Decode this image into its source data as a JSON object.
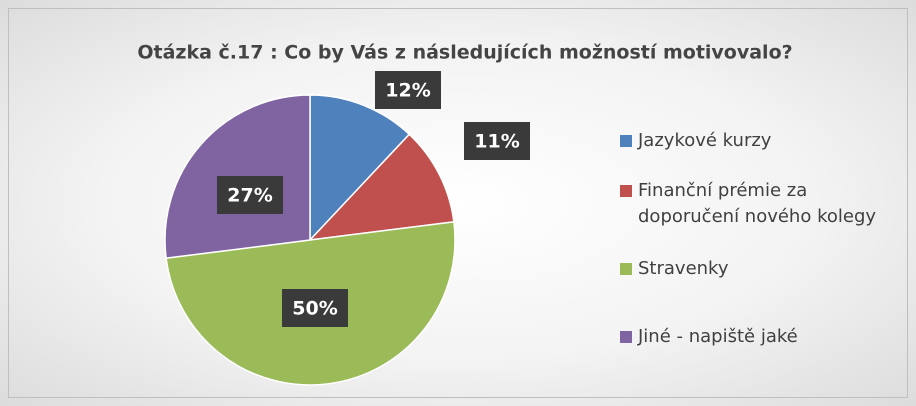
{
  "chart_data": {
    "type": "pie",
    "title": "Otázka č.17 : Co by Vás z následujících možností motivovalo?",
    "categories": [
      "Jazykové kurzy",
      "Finanční prémie za doporučení nového kolegy",
      "Stravenky",
      "Jiné - napiště jaké"
    ],
    "values": [
      12,
      11,
      50,
      27
    ],
    "value_labels": [
      "12%",
      "11%",
      "50%",
      "27%"
    ],
    "colors": [
      "#4f81bd",
      "#c0504d",
      "#9bbb59",
      "#8064a2"
    ],
    "legend": "right"
  }
}
